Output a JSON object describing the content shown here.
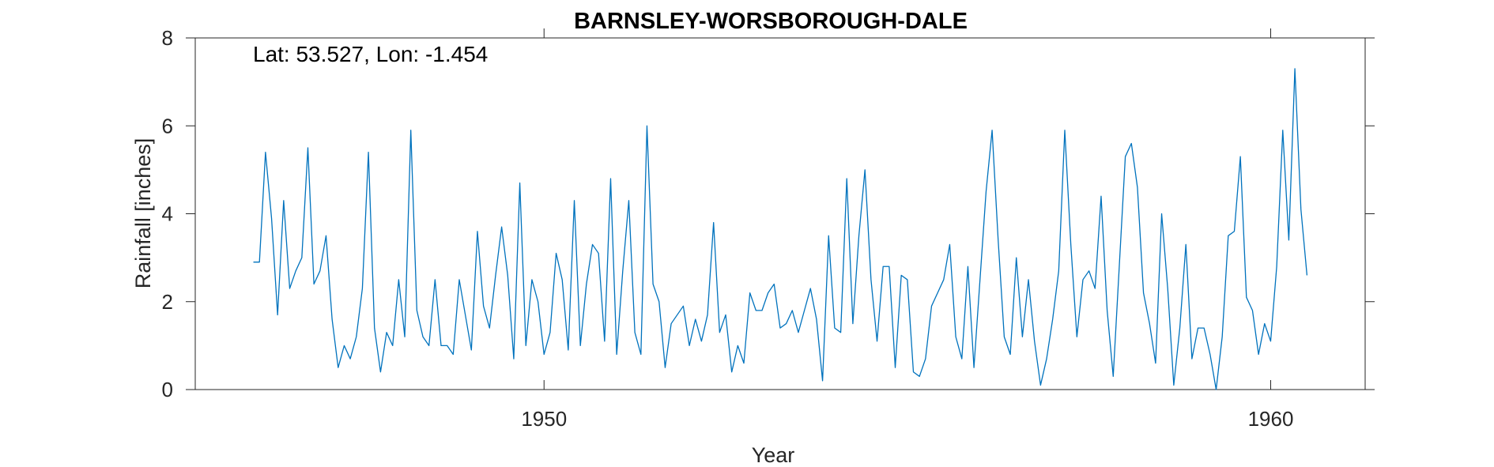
{
  "chart_data": {
    "type": "line",
    "title": "BARNSLEY-WORSBOROUGH-DALE",
    "annotation": "Lat: 53.527, Lon: -1.454",
    "xlabel": "Year",
    "ylabel": "Rainfall [inches]",
    "xlim": [
      1945.2,
      1961.3
    ],
    "ylim": [
      0,
      8
    ],
    "xticks": [
      1950,
      1960
    ],
    "xtick_labels": [
      "1950",
      "1960"
    ],
    "yticks": [
      0,
      2,
      4,
      6,
      8
    ],
    "ytick_labels": [
      "0",
      "2",
      "4",
      "6",
      "8"
    ],
    "grid": false,
    "line_color": "#0072BD",
    "series": [
      {
        "start": 1946.0,
        "step_years": 0.08333,
        "values": [
          2.9,
          2.9,
          5.4,
          3.9,
          1.7,
          4.3,
          2.3,
          2.7,
          3.0,
          5.5,
          2.4,
          2.7,
          3.5,
          1.6,
          0.5,
          1.0,
          0.7,
          1.2,
          2.3,
          5.4,
          1.4,
          0.4,
          1.3,
          1.0,
          2.5,
          1.2,
          5.9,
          1.8,
          1.2,
          1.0,
          2.5,
          1.0,
          1.0,
          0.8,
          2.5,
          1.7,
          0.9,
          3.6,
          1.9,
          1.4,
          2.6,
          3.7,
          2.6,
          0.7,
          4.7,
          1.0,
          2.5,
          2.0,
          0.8,
          1.3,
          3.1,
          2.5,
          0.9,
          4.3,
          1.0,
          2.4,
          3.3,
          3.1,
          1.1,
          4.8,
          0.8,
          2.7,
          4.3,
          1.3,
          0.8,
          6.0,
          2.4,
          2.0,
          0.5,
          1.5,
          1.7,
          1.9,
          1.0,
          1.6,
          1.1,
          1.7,
          3.8,
          1.3,
          1.7,
          0.4,
          1.0,
          0.6,
          2.2,
          1.8,
          1.8,
          2.2,
          2.4,
          1.4,
          1.5,
          1.8,
          1.3,
          1.8,
          2.3,
          1.6,
          0.2,
          3.5,
          1.4,
          1.3,
          4.8,
          1.5,
          3.5,
          5.0,
          2.5,
          1.1,
          2.8,
          2.8,
          0.5,
          2.6,
          2.5,
          0.4,
          0.3,
          0.7,
          1.9,
          2.2,
          2.5,
          3.3,
          1.2,
          0.7,
          2.8,
          0.5,
          2.5,
          4.5,
          5.9,
          3.4,
          1.2,
          0.8,
          3.0,
          1.2,
          2.5,
          1.1,
          0.1,
          0.7,
          1.6,
          2.7,
          5.9,
          3.3,
          1.2,
          2.5,
          2.7,
          2.3,
          4.4,
          1.8,
          0.3,
          2.8,
          5.3,
          5.6,
          4.6,
          2.2,
          1.5,
          0.6,
          4.0,
          2.3,
          0.1,
          1.4,
          3.3,
          0.7,
          1.4,
          1.4,
          0.8,
          0.0,
          1.2,
          3.5,
          3.6,
          5.3,
          2.1,
          1.8,
          0.8,
          1.5,
          1.1,
          2.8,
          5.9,
          3.4,
          7.3,
          4.1,
          2.6
        ]
      }
    ]
  }
}
